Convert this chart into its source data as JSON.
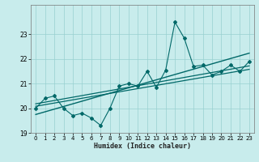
{
  "xlabel": "Humidex (Indice chaleur)",
  "background_color": "#c8ecec",
  "grid_color": "#98d0d0",
  "line_color": "#006868",
  "x_data": [
    0,
    1,
    2,
    3,
    4,
    5,
    6,
    7,
    8,
    9,
    10,
    11,
    12,
    13,
    14,
    15,
    16,
    17,
    18,
    19,
    20,
    21,
    22,
    23
  ],
  "y_scatter": [
    20.0,
    20.4,
    20.5,
    20.0,
    19.7,
    19.8,
    19.6,
    19.3,
    20.0,
    20.9,
    21.0,
    20.9,
    21.5,
    20.85,
    21.55,
    23.5,
    22.85,
    21.7,
    21.75,
    21.35,
    21.5,
    21.75,
    21.5,
    21.9
  ],
  "ylim": [
    19.0,
    24.2
  ],
  "xlim": [
    -0.5,
    23.5
  ],
  "yticks": [
    19,
    20,
    21,
    22,
    23
  ],
  "xticks": [
    0,
    1,
    2,
    3,
    4,
    5,
    6,
    7,
    8,
    9,
    10,
    11,
    12,
    13,
    14,
    15,
    16,
    17,
    18,
    19,
    20,
    21,
    22,
    23
  ],
  "reg_line1_y": [
    20.0,
    21.9
  ],
  "reg_line2_y": [
    20.08,
    21.58
  ],
  "reg_line3_y": [
    20.18,
    21.72
  ]
}
